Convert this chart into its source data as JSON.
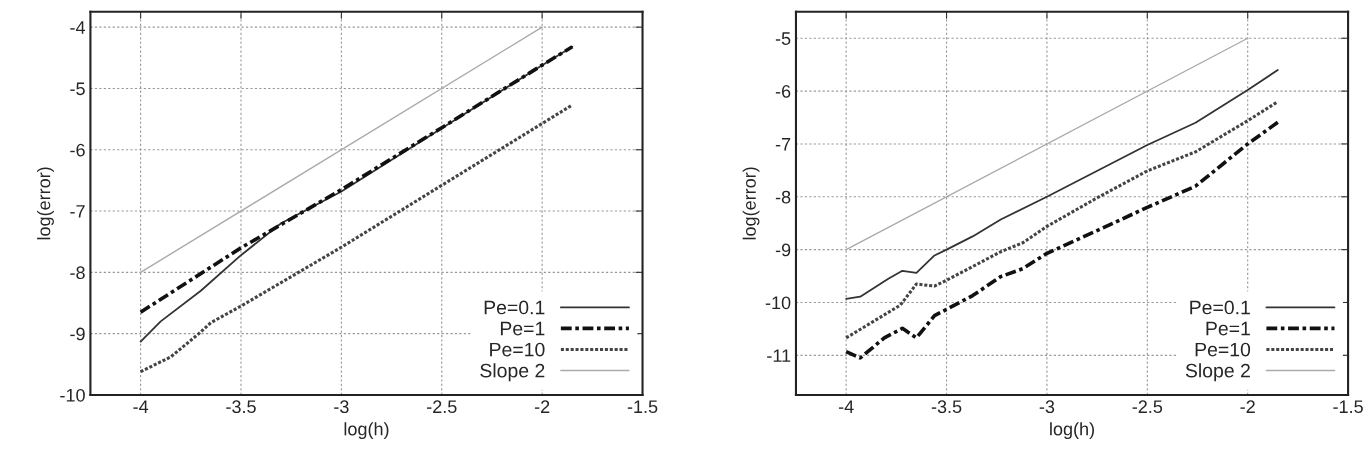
{
  "chart_data": [
    {
      "type": "line",
      "xlabel": "log(h)",
      "ylabel": "log(error)",
      "xlim": [
        -4.25,
        -1.5
      ],
      "xticks": [
        -4,
        -3.5,
        -3,
        -2.5,
        -2,
        -1.5
      ],
      "ylim": [
        -10,
        -3.75
      ],
      "yticks": [
        -10,
        -9,
        -8,
        -7,
        -6,
        -5,
        -4
      ],
      "grid": true,
      "legend": "bottom right",
      "series": [
        {
          "name": "Pe=0.1",
          "color": "#333333",
          "line_style": "solid",
          "x": [
            -4,
            -3.9,
            -3.7,
            -3.5,
            -3.3,
            -3,
            -2.5,
            -2,
            -1.85
          ],
          "values": [
            -9.13,
            -8.8,
            -8.3,
            -7.72,
            -7.2,
            -6.68,
            -5.65,
            -4.62,
            -4.32
          ]
        },
        {
          "name": "Pe=1",
          "color": "#111111",
          "line_style": "dashed",
          "x": [
            -4,
            -3.5,
            -3,
            -2.5,
            -2,
            -1.85
          ],
          "values": [
            -8.65,
            -7.6,
            -6.65,
            -5.64,
            -4.62,
            -4.32
          ]
        },
        {
          "name": "Pe=10",
          "color": "#444444",
          "line_style": "dotted",
          "x": [
            -4,
            -3.85,
            -3.71,
            -3.65,
            -3.5,
            -3,
            -2.5,
            -1.85
          ],
          "values": [
            -9.62,
            -9.38,
            -9.0,
            -8.82,
            -8.55,
            -7.59,
            -6.58,
            -5.27
          ]
        },
        {
          "name": "Slope 2",
          "color": "#aaaaaa",
          "line_style": "solid",
          "x": [
            -4,
            -2
          ],
          "values": [
            -8,
            -4
          ]
        }
      ]
    },
    {
      "type": "line",
      "xlabel": "log(h)",
      "ylabel": "log(error)",
      "xlim": [
        -4.25,
        -1.5
      ],
      "xticks": [
        -4,
        -3.5,
        -3,
        -2.5,
        -2,
        -1.5
      ],
      "ylim": [
        -11.75,
        -4.5
      ],
      "yticks": [
        -11,
        -10,
        -9,
        -8,
        -7,
        -6,
        -5
      ],
      "grid": true,
      "legend": "bottom right",
      "series": [
        {
          "name": "Pe=0.1",
          "color": "#333333",
          "line_style": "solid",
          "x": [
            -4,
            -3.93,
            -3.79,
            -3.72,
            -3.65,
            -3.56,
            -3.5,
            -3.37,
            -3.23,
            -3,
            -2.5,
            -2.26,
            -2,
            -1.85
          ],
          "values": [
            -9.93,
            -9.89,
            -9.55,
            -9.4,
            -9.44,
            -9.11,
            -9.0,
            -8.75,
            -8.43,
            -8.0,
            -7.02,
            -6.6,
            -5.98,
            -5.6
          ]
        },
        {
          "name": "Pe=1",
          "color": "#111111",
          "line_style": "dashed",
          "x": [
            -4,
            -3.93,
            -3.81,
            -3.72,
            -3.65,
            -3.56,
            -3.5,
            -3.37,
            -3.23,
            -3.12,
            -3,
            -2.75,
            -2.5,
            -2.26,
            -2,
            -1.85
          ],
          "values": [
            -10.93,
            -11.05,
            -10.67,
            -10.49,
            -10.67,
            -10.25,
            -10.13,
            -9.87,
            -9.51,
            -9.36,
            -9.07,
            -8.64,
            -8.2,
            -7.8,
            -7.0,
            -6.59
          ]
        },
        {
          "name": "Pe=10",
          "color": "#444444",
          "line_style": "dotted",
          "x": [
            -4,
            -3.73,
            -3.65,
            -3.56,
            -3.5,
            -3.23,
            -3.12,
            -3,
            -2.75,
            -2.5,
            -2.26,
            -2,
            -1.85
          ],
          "values": [
            -10.67,
            -10.05,
            -9.65,
            -9.69,
            -9.58,
            -9.04,
            -8.87,
            -8.56,
            -8.02,
            -7.51,
            -7.15,
            -6.56,
            -6.2
          ]
        },
        {
          "name": "Slope 2",
          "color": "#aaaaaa",
          "line_style": "solid",
          "x": [
            -4,
            -2
          ],
          "values": [
            -9,
            -5
          ]
        }
      ]
    }
  ]
}
